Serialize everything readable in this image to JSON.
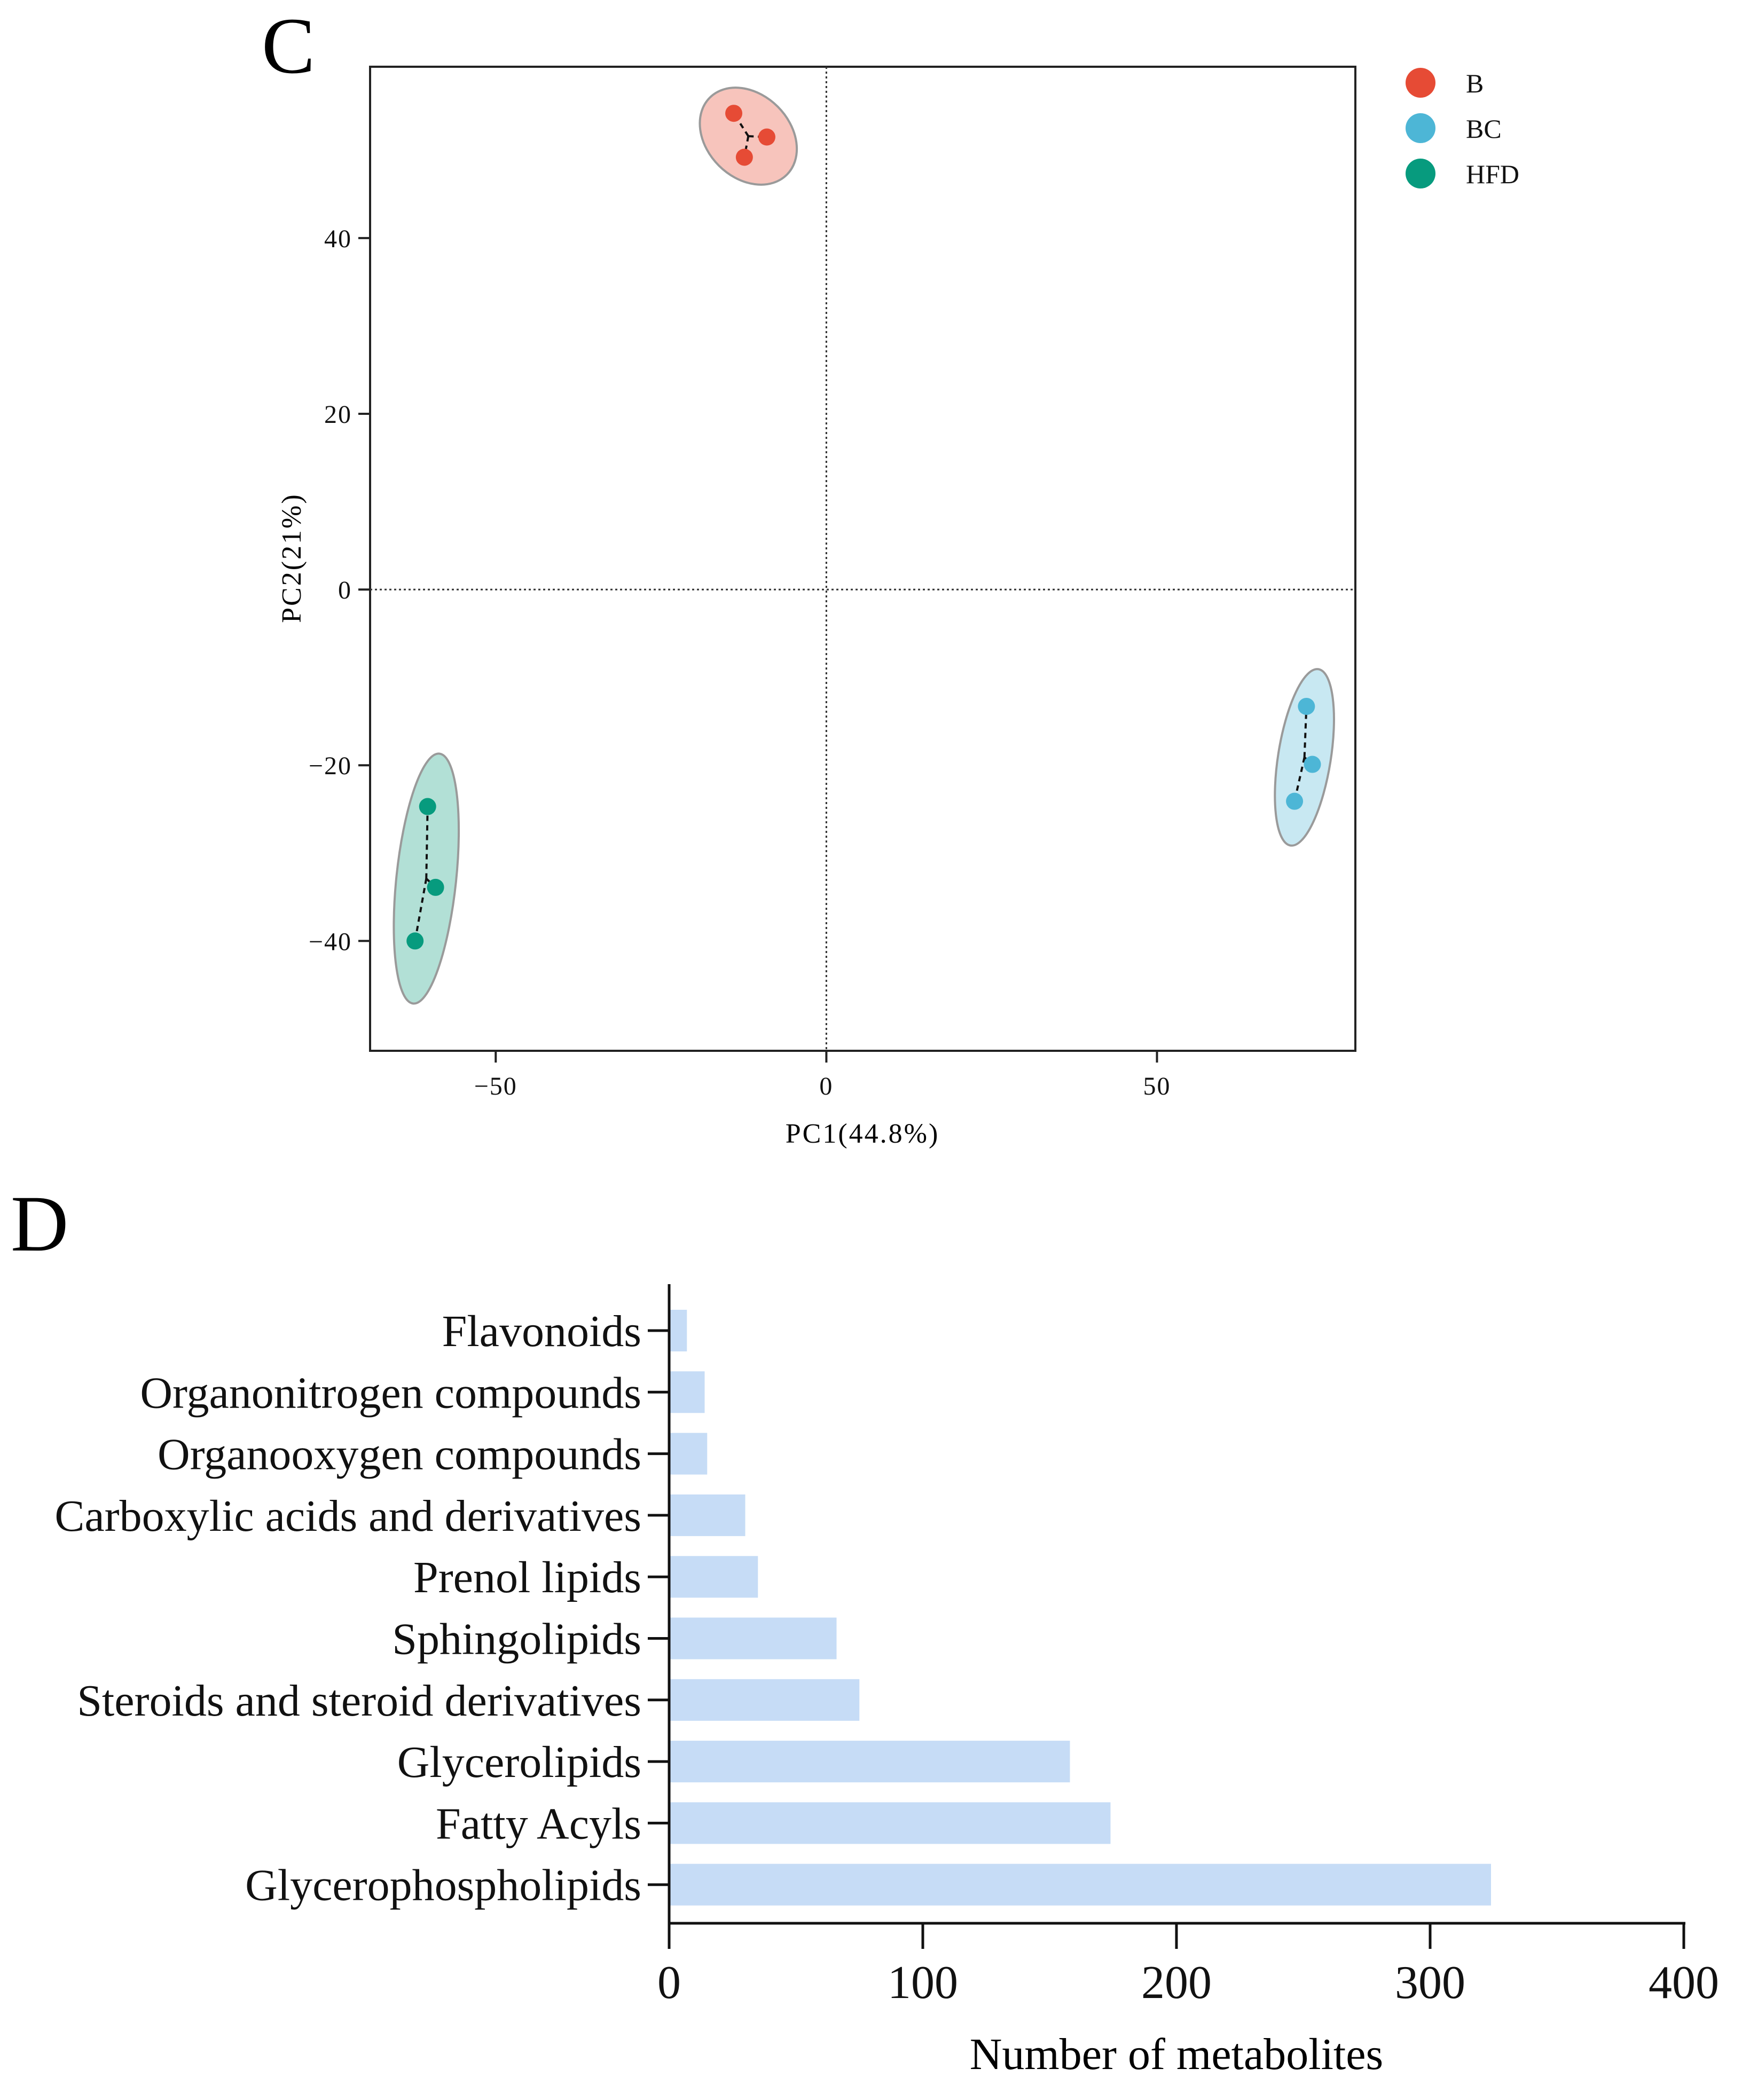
{
  "figure": {
    "panel_c_label": "C",
    "panel_d_label": "D"
  },
  "chart_data": [
    {
      "type": "scatter",
      "panel": "C",
      "title": "",
      "xlabel": "PC1(44.8%)",
      "ylabel": "PC2(21%)",
      "xlim": [
        -69,
        80
      ],
      "ylim": [
        -52.5,
        59.5
      ],
      "xticks": [
        -50,
        0,
        50
      ],
      "xtick_labels": [
        "−50",
        "0",
        "50"
      ],
      "yticks": [
        -40,
        -20,
        0,
        20,
        40
      ],
      "ytick_labels": [
        "−40",
        "−20",
        "0",
        "20",
        "40"
      ],
      "reference_lines": {
        "x": 0,
        "y": 0,
        "style": "dotted"
      },
      "legend_position": "top-right, outside plot",
      "series": [
        {
          "name": "B",
          "color": "#e64b35",
          "fill": "#f7c4bc",
          "points": [
            [
              -14,
              54.2
            ],
            [
              -9,
              51.5
            ],
            [
              -12.4,
              49.2
            ]
          ],
          "centroid": [
            -11.8,
            51.6
          ],
          "ellipse": {
            "center": [
              -11.8,
              51.6
            ],
            "rx": 6.3,
            "ry": 6.2,
            "rotation_deg": 45
          }
        },
        {
          "name": "BC",
          "color": "#4db6d6",
          "fill": "#c8e8f2",
          "points": [
            [
              72.6,
              -13.3
            ],
            [
              73.5,
              -19.9
            ],
            [
              70.8,
              -24.1
            ]
          ],
          "centroid": [
            72.3,
            -19.1
          ],
          "ellipse": {
            "center": [
              72.3,
              -19.1
            ],
            "rx": 13.5,
            "ry": 3.0,
            "rotation_deg": 81
          }
        },
        {
          "name": "HFD",
          "color": "#079b7e",
          "fill": "#b2e0d6",
          "points": [
            [
              -60.3,
              -24.7
            ],
            [
              -59.1,
              -33.9
            ],
            [
              -62.2,
              -40.0
            ]
          ],
          "centroid": [
            -60.5,
            -32.9
          ],
          "ellipse": {
            "center": [
              -60.5,
              -32.9
            ],
            "rx": 19,
            "ry": 3.4,
            "rotation_deg": 84
          }
        }
      ]
    },
    {
      "type": "bar",
      "panel": "D",
      "orientation": "horizontal",
      "title": "",
      "xlabel": "Number of metabolites",
      "ylabel": "",
      "xlim": [
        0,
        400
      ],
      "xticks": [
        0,
        100,
        200,
        300,
        400
      ],
      "bar_color": "#c6dcf6",
      "categories": [
        "Flavonoids",
        "Organonitrogen compounds",
        "Organooxygen compounds",
        "Carboxylic acids and derivatives",
        "Prenol lipids",
        "Sphingolipids",
        "Steroids and steroid derivatives",
        "Glycerolipids",
        "Fatty Acyls",
        "Glycerophospholipids"
      ],
      "values": [
        7,
        14,
        15,
        30,
        35,
        66,
        75,
        158,
        174,
        324
      ]
    }
  ]
}
